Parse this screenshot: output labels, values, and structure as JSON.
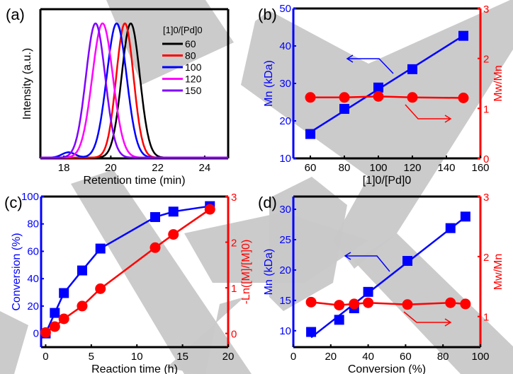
{
  "watermark_color": "#c8c8c8",
  "colors": {
    "blue": "#0000ff",
    "red": "#ff0000",
    "black": "#000000",
    "magenta": "#ff00ff",
    "violet": "#8000ff"
  },
  "chart_data": [
    {
      "panel_label": "(a)",
      "type": "line",
      "title": "",
      "xlabel": "Retention time (min)",
      "ylabel": "Intensity (a.u.)",
      "xlim": [
        17,
        25
      ],
      "ylim": [
        0,
        1.1
      ],
      "xticks": [
        "18",
        "20",
        "22",
        "24"
      ],
      "xtick_values": [
        18,
        20,
        22,
        24
      ],
      "legend_title": "[1]0/[Pd]0",
      "legend_position": "top-right",
      "series": [
        {
          "name": "60",
          "color": "#000000",
          "peak": 20.85,
          "width": 0.55
        },
        {
          "name": "80",
          "color": "#ff0000",
          "peak": 20.6,
          "width": 0.52
        },
        {
          "name": "100",
          "color": "#0000ff",
          "peak": 20.25,
          "width": 0.6,
          "shoulder": 18.2
        },
        {
          "name": "120",
          "color": "#ff00ff",
          "peak": 19.65,
          "width": 0.62
        },
        {
          "name": "150",
          "color": "#8000ff",
          "peak": 19.35,
          "width": 0.58
        }
      ]
    },
    {
      "panel_label": "(b)",
      "type": "scatter",
      "xlabel": "[1]0/[Pd]0",
      "ylabel_left": "Mn (kDa)",
      "ylabel_right": "Mw/Mn",
      "xlim": [
        50,
        160
      ],
      "ylim_left": [
        10,
        50
      ],
      "ylim_right": [
        0,
        3
      ],
      "xticks": [
        "60",
        "80",
        "100",
        "120",
        "140",
        "160"
      ],
      "xtick_values": [
        60,
        80,
        100,
        120,
        140,
        160
      ],
      "yticks_left": [
        "10",
        "20",
        "30",
        "40",
        "50"
      ],
      "ytick_values_left": [
        10,
        20,
        30,
        40,
        50
      ],
      "yticks_right": [
        "0",
        "1",
        "2",
        "3"
      ],
      "ytick_values_right": [
        0,
        1,
        2,
        3
      ],
      "series": [
        {
          "name": "Mn",
          "axis": "left",
          "marker": "square",
          "color": "#0000ff",
          "x": [
            60,
            80,
            100,
            120,
            150
          ],
          "y": [
            16.5,
            23.2,
            28.9,
            33.8,
            42.7
          ],
          "fit": "linear"
        },
        {
          "name": "Mw/Mn",
          "axis": "right",
          "marker": "circle",
          "color": "#ff0000",
          "x": [
            60,
            80,
            100,
            120,
            150
          ],
          "y": [
            1.22,
            1.22,
            1.24,
            1.22,
            1.21
          ],
          "fit": "line"
        }
      ]
    },
    {
      "panel_label": "(c)",
      "type": "scatter",
      "xlabel": "Reaction time (h)",
      "ylabel_left": "Conversion (%)",
      "ylabel_right": "-Ln([M]/[M]0)",
      "xlim": [
        -0.5,
        20
      ],
      "ylim_left": [
        -10,
        100
      ],
      "ylim_right": [
        -0.3,
        3
      ],
      "xticks": [
        "0",
        "5",
        "10",
        "15",
        "20"
      ],
      "xtick_values": [
        0,
        5,
        10,
        15,
        20
      ],
      "yticks_left": [
        "0",
        "20",
        "40",
        "60",
        "80",
        "100"
      ],
      "ytick_values_left": [
        0,
        20,
        40,
        60,
        80,
        100
      ],
      "yticks_right": [
        "0",
        "1",
        "2",
        "3"
      ],
      "ytick_values_right": [
        0,
        1,
        2,
        3
      ],
      "series": [
        {
          "name": "Conversion",
          "axis": "left",
          "marker": "square",
          "color": "#0000ff",
          "x": [
            0,
            1,
            2,
            4,
            6,
            12,
            14,
            18
          ],
          "y": [
            0,
            15,
            29.5,
            46,
            62,
            85,
            89,
            93
          ],
          "fit": "curve"
        },
        {
          "name": "-Ln([M]/[M]0)",
          "axis": "right",
          "marker": "circle",
          "color": "#ff0000",
          "x": [
            0,
            1,
            2,
            4,
            6,
            12,
            14,
            18
          ],
          "y": [
            0.02,
            0.15,
            0.32,
            0.6,
            0.98,
            1.88,
            2.17,
            2.72
          ],
          "fit": "line"
        }
      ]
    },
    {
      "panel_label": "(d)",
      "type": "scatter",
      "xlabel": "Conversion (%)",
      "ylabel_left": "Mn (kDa)",
      "ylabel_right": "Mw/Mn",
      "xlim": [
        0,
        100
      ],
      "ylim_left": [
        7.3,
        32.1
      ],
      "ylim_right": [
        0.49,
        3
      ],
      "xticks": [
        "0",
        "20",
        "40",
        "60",
        "80",
        "100"
      ],
      "xtick_values": [
        0,
        20,
        40,
        60,
        80,
        100
      ],
      "yticks_left": [
        "10",
        "15",
        "20",
        "25",
        "30"
      ],
      "ytick_values_left": [
        10,
        15,
        20,
        25,
        30
      ],
      "yticks_right": [
        "1",
        "2",
        "3"
      ],
      "ytick_values_right": [
        1,
        2,
        3
      ],
      "series": [
        {
          "name": "Mn",
          "axis": "left",
          "marker": "square",
          "color": "#0000ff",
          "x": [
            9.5,
            24.5,
            32.5,
            40,
            61,
            84,
            92
          ],
          "y": [
            9.8,
            11.8,
            13.7,
            16.4,
            21.5,
            26.9,
            28.8
          ],
          "fit": "linear"
        },
        {
          "name": "Mw/Mn",
          "axis": "right",
          "marker": "circle",
          "color": "#ff0000",
          "x": [
            9.5,
            24.5,
            32.5,
            40,
            61,
            84,
            92
          ],
          "y": [
            1.24,
            1.19,
            1.21,
            1.23,
            1.2,
            1.23,
            1.21
          ],
          "fit": "line"
        }
      ]
    }
  ]
}
